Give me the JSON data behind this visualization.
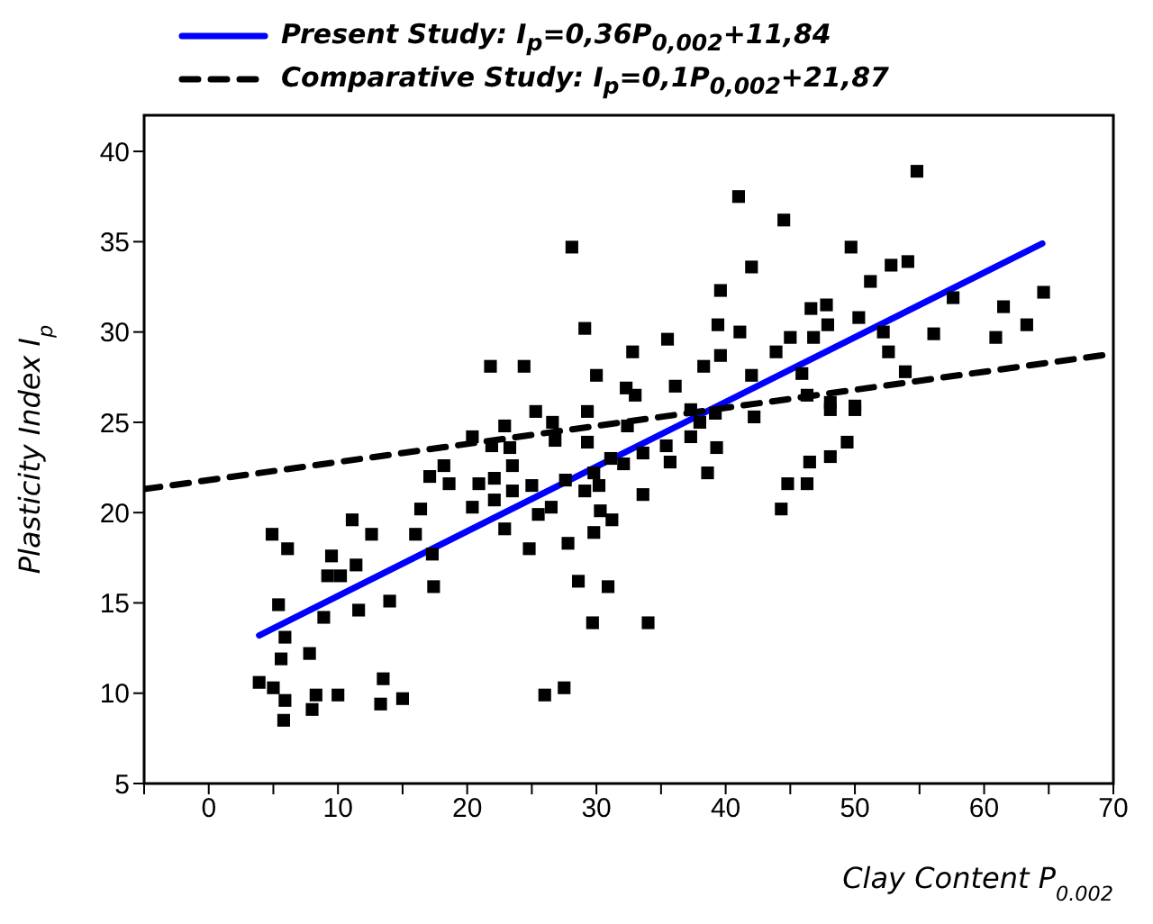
{
  "chart_data": {
    "type": "scatter",
    "xlabel": "Clay Content P$_{0.002}$",
    "ylabel": "Plasticity Index I$_{p}$",
    "xlim": [
      -5,
      70
    ],
    "ylim": [
      5,
      42
    ],
    "xticks": [
      {
        "value": -5,
        "label": null
      },
      0,
      {
        "value": 5,
        "label": null
      },
      10,
      {
        "value": 15,
        "label": null
      },
      20,
      {
        "value": 25,
        "label": null
      },
      30,
      {
        "value": 35,
        "label": null
      },
      40,
      {
        "value": 45,
        "label": null
      },
      50,
      {
        "value": 55,
        "label": null
      },
      60,
      {
        "value": 65,
        "label": null
      },
      70
    ],
    "yticks": [
      5,
      10,
      15,
      20,
      25,
      30,
      35,
      40
    ],
    "grid": false,
    "legend": "top",
    "series": [
      {
        "color": "#000000",
        "marker": "square",
        "x": [
          4.9,
          6.1,
          9.5,
          9.2,
          10.2,
          11.4,
          11.1,
          12.6,
          16.0,
          16.4,
          17.3,
          17.4,
          5.4,
          8.9,
          11.6,
          14.0,
          5.9,
          5.6,
          7.8,
          3.9,
          5.0,
          5.9,
          5.8,
          8.3,
          8.0,
          10.0,
          13.5,
          13.3,
          15.0,
          26.0,
          27.5,
          28.6,
          30.9,
          29.7,
          34.0,
          17.1,
          18.2,
          18.6,
          20.4,
          21.9,
          22.9,
          23.3,
          23.5,
          20.9,
          22.1,
          23.5,
          22.1,
          20.4,
          22.9,
          24.8,
          25.0,
          25.5,
          26.5,
          25.3,
          26.6,
          26.8,
          29.3,
          29.3,
          27.6,
          29.1,
          30.2,
          29.8,
          30.3,
          31.2,
          29.8,
          27.8,
          31.1,
          32.1,
          33.6,
          32.4,
          33.6,
          37.3,
          38.0,
          42.2,
          35.4,
          35.7,
          37.3,
          39.3,
          38.6,
          44.3,
          44.8,
          46.3,
          46.5,
          48.1,
          49.4,
          48.1,
          50.0,
          54.8,
          41.0,
          44.5,
          49.7,
          42.0,
          52.8,
          54.1,
          51.2,
          39.6,
          64.6,
          57.6,
          61.5,
          46.6,
          47.8,
          47.9,
          50.3,
          63.3,
          39.4,
          41.1,
          35.5,
          32.8,
          45.0,
          46.8,
          52.2,
          56.1,
          60.9,
          43.9,
          39.6,
          52.6,
          38.3,
          42.0,
          45.9,
          53.9,
          36.1,
          32.3,
          33.0,
          46.3,
          48.1,
          50.0,
          39.2,
          28.1,
          29.1,
          21.8,
          24.4,
          30.0
        ],
        "values": [
          18.8,
          18.0,
          17.6,
          16.5,
          16.5,
          17.1,
          19.6,
          18.8,
          18.8,
          20.2,
          17.7,
          15.9,
          14.9,
          14.2,
          14.6,
          15.1,
          13.1,
          11.9,
          12.2,
          10.6,
          10.3,
          9.6,
          8.5,
          9.9,
          9.1,
          9.9,
          10.8,
          9.4,
          9.7,
          9.9,
          10.3,
          16.2,
          15.9,
          13.9,
          13.9,
          22.0,
          22.6,
          21.6,
          24.2,
          23.7,
          24.8,
          23.6,
          22.6,
          21.6,
          21.9,
          21.2,
          20.7,
          20.3,
          19.1,
          18.0,
          21.5,
          19.9,
          20.3,
          25.6,
          25.0,
          24.0,
          25.6,
          23.9,
          21.8,
          21.2,
          21.5,
          22.2,
          20.1,
          19.6,
          18.9,
          18.3,
          23.0,
          22.7,
          21.0,
          24.8,
          23.3,
          25.7,
          25.0,
          25.3,
          23.7,
          22.8,
          24.2,
          23.6,
          22.2,
          20.2,
          21.6,
          21.6,
          22.8,
          23.1,
          23.9,
          25.7,
          25.7,
          38.9,
          37.5,
          36.2,
          34.7,
          33.6,
          33.7,
          33.9,
          32.8,
          32.3,
          32.2,
          31.9,
          31.4,
          31.3,
          31.5,
          30.4,
          30.8,
          30.4,
          30.4,
          30.0,
          29.6,
          28.9,
          29.7,
          29.7,
          30.0,
          29.9,
          29.7,
          28.9,
          28.7,
          28.9,
          28.1,
          27.6,
          27.7,
          27.8,
          27.0,
          26.9,
          26.5,
          26.5,
          26.1,
          25.9,
          25.5,
          34.7,
          30.2,
          28.1,
          28.1,
          27.6
        ]
      },
      {
        "type": "line",
        "name": "Present Study: I$_{p}$=0,36P$_{0,002}$+11,84",
        "color": "#0000ff",
        "line_style": "solid",
        "x": [
          3.9,
          64.5
        ],
        "values": [
          13.2,
          34.9
        ]
      },
      {
        "type": "line",
        "name": "Comparative Study: I$_{p}$=0,1P$_{0,002}$+21,87",
        "color": "#000000",
        "line_style": "dashed",
        "x": [
          -5,
          70
        ],
        "values": [
          21.3,
          28.8
        ]
      }
    ]
  }
}
